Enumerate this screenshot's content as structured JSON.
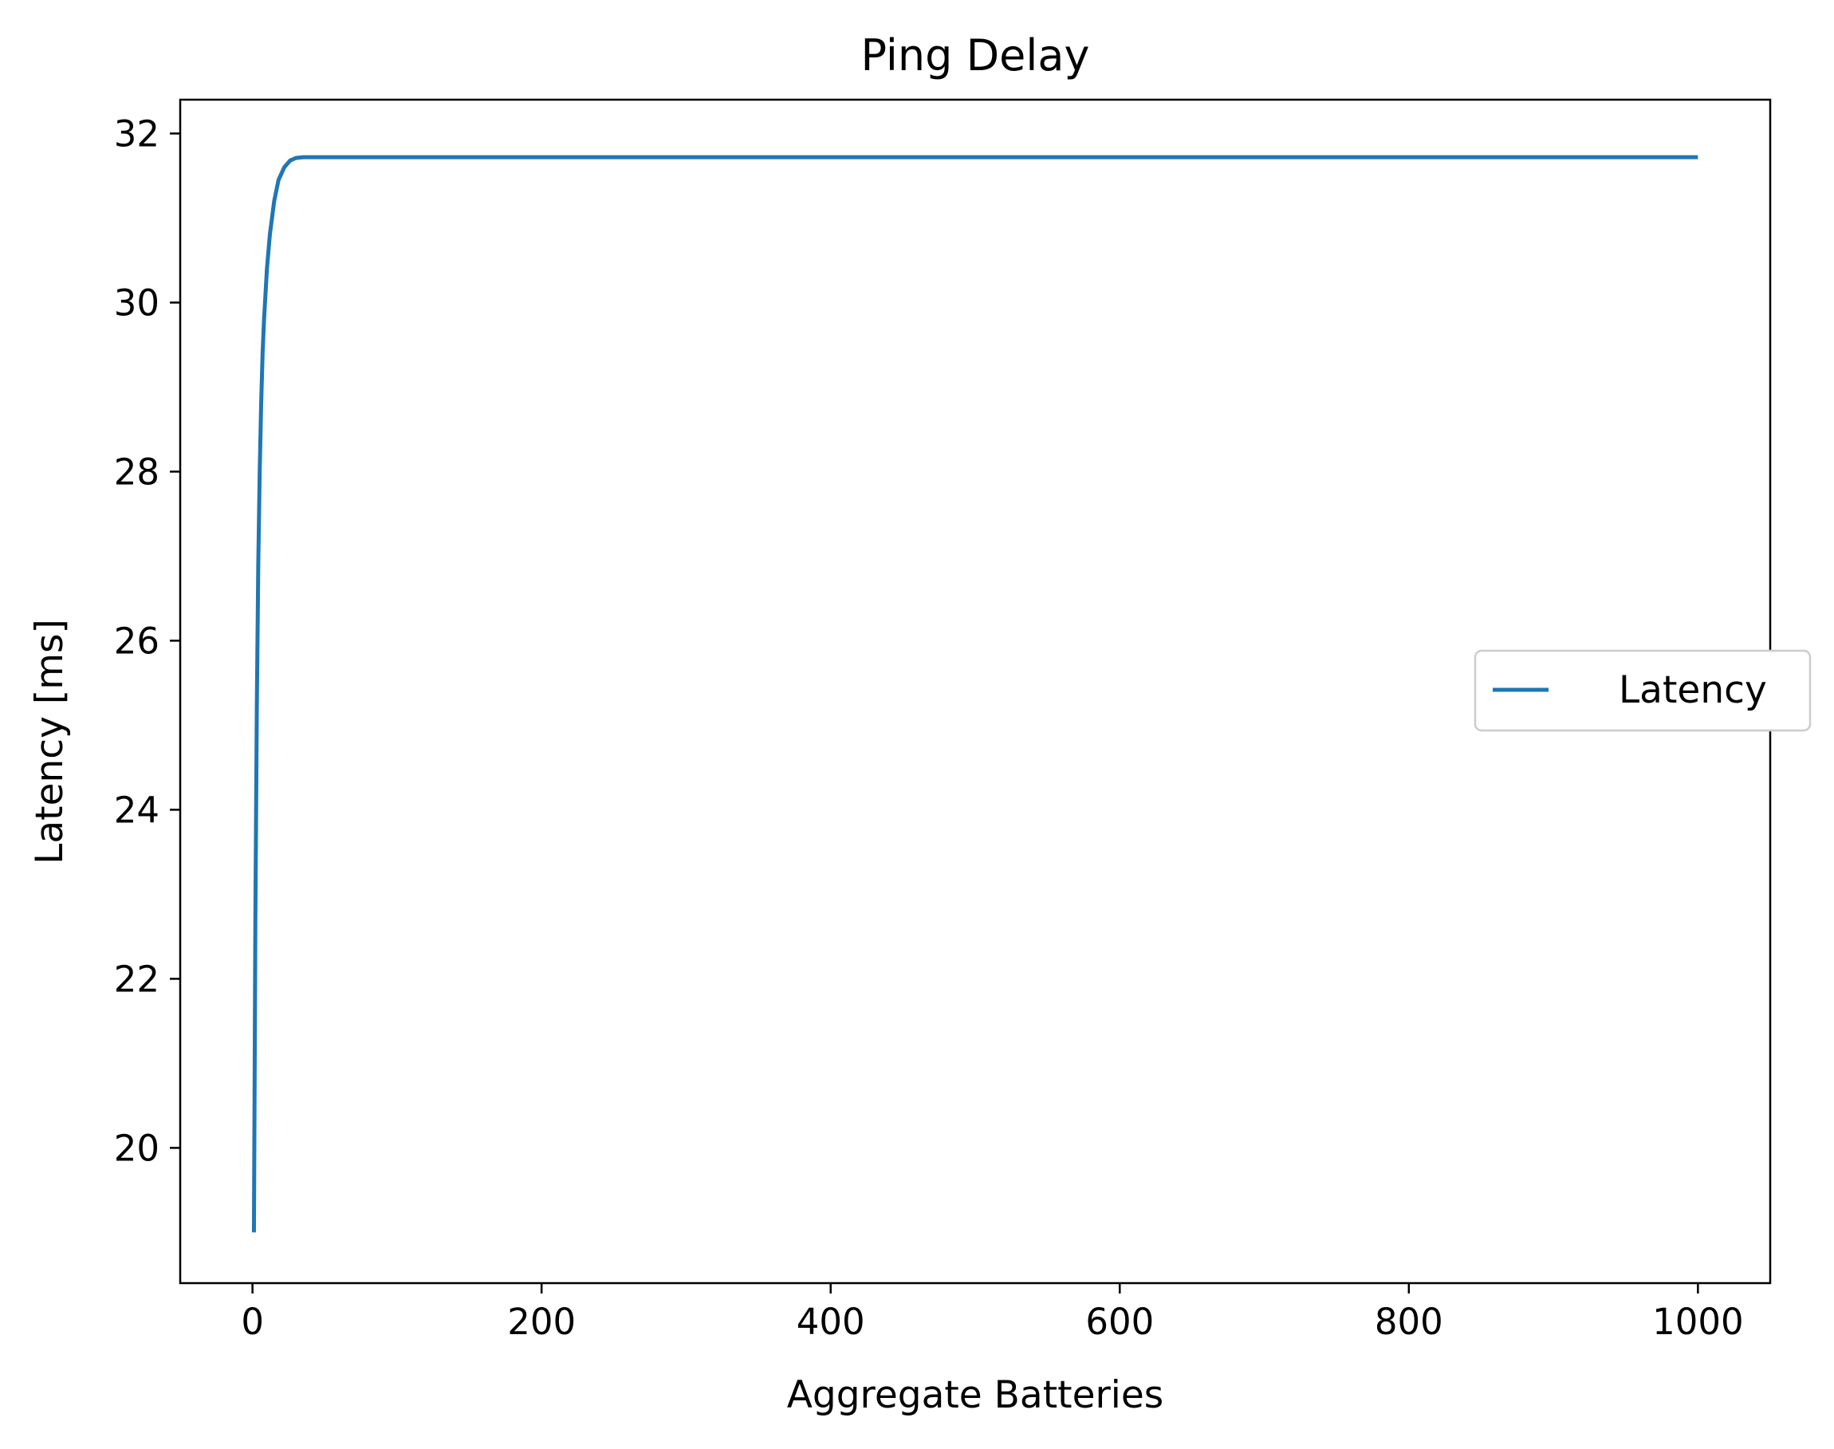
{
  "chart_data": {
    "type": "line",
    "title": "Ping Delay",
    "xlabel": "Aggregate Batteries",
    "ylabel": "Latency [ms]",
    "xlim": [
      -50,
      1050
    ],
    "ylim": [
      18.4,
      32.4
    ],
    "xticks": [
      0,
      200,
      400,
      600,
      800,
      1000
    ],
    "xtick_labels": [
      "0",
      "200",
      "400",
      "600",
      "800",
      "1000"
    ],
    "yticks": [
      20,
      22,
      24,
      26,
      28,
      30,
      32
    ],
    "ytick_labels": [
      "20",
      "22",
      "24",
      "26",
      "28",
      "30",
      "32"
    ],
    "grid": false,
    "legend_position": "center-right",
    "series": [
      {
        "name": "Latency",
        "color": "#1f77b4",
        "x": [
          1,
          2,
          3,
          4,
          5,
          6,
          7,
          8,
          10,
          12,
          15,
          18,
          22,
          26,
          30,
          35,
          40,
          50,
          100,
          200,
          400,
          600,
          800,
          1000
        ],
        "y": [
          19.0,
          22.7,
          25.2,
          26.9,
          28.0,
          28.8,
          29.4,
          29.8,
          30.4,
          30.8,
          31.2,
          31.45,
          31.6,
          31.68,
          31.71,
          31.72,
          31.72,
          31.72,
          31.72,
          31.72,
          31.72,
          31.72,
          31.72,
          31.72
        ]
      }
    ]
  }
}
